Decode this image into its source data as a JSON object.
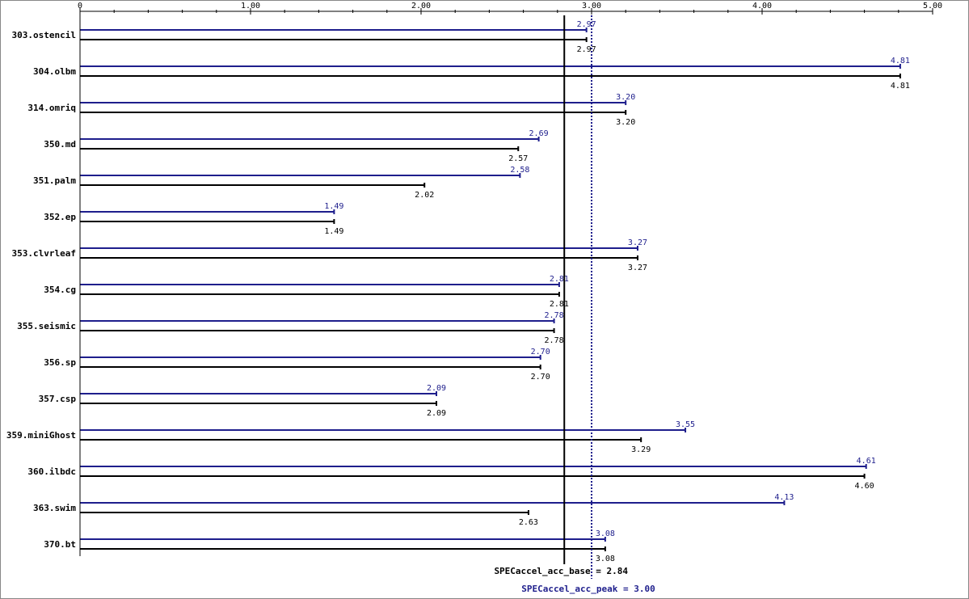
{
  "colors": {
    "base": "#000000",
    "peak": "#1e1e8c",
    "axis": "#000000"
  },
  "chart_data": {
    "type": "bar",
    "orientation": "horizontal",
    "xlim": [
      0,
      5
    ],
    "x_ticks": [
      "0",
      "1.00",
      "2.00",
      "3.00",
      "4.00",
      "5.00"
    ],
    "x_tick_values": [
      0,
      1,
      2,
      3,
      4,
      5
    ],
    "grid": false,
    "categories": [
      "303.ostencil",
      "304.olbm",
      "314.omriq",
      "350.md",
      "351.palm",
      "352.ep",
      "353.clvrleaf",
      "354.cg",
      "355.seismic",
      "356.sp",
      "357.csp",
      "359.miniGhost",
      "360.ilbdc",
      "363.swim",
      "370.bt"
    ],
    "series": [
      {
        "key": "peak",
        "values": [
          2.97,
          4.81,
          3.2,
          2.69,
          2.58,
          1.49,
          3.27,
          2.81,
          2.78,
          2.7,
          2.09,
          3.55,
          4.61,
          4.13,
          3.08
        ],
        "labels": [
          "2.97",
          "4.81",
          "3.20",
          "2.69",
          "2.58",
          "1.49",
          "3.27",
          "2.81",
          "2.78",
          "2.70",
          "2.09",
          "3.55",
          "4.61",
          "4.13",
          "3.08"
        ]
      },
      {
        "key": "base",
        "values": [
          2.97,
          4.81,
          3.2,
          2.57,
          2.02,
          1.49,
          3.27,
          2.81,
          2.78,
          2.7,
          2.09,
          3.29,
          4.6,
          2.63,
          3.08
        ],
        "labels": [
          "2.97",
          "4.81",
          "3.20",
          "2.57",
          "2.02",
          "1.49",
          "3.27",
          "2.81",
          "2.78",
          "2.70",
          "2.09",
          "3.29",
          "4.60",
          "2.63",
          "3.08"
        ]
      }
    ],
    "reference_lines": [
      {
        "key": "base",
        "value": 2.84,
        "label": "SPECaccel_acc_base = 2.84",
        "style": "solid"
      },
      {
        "key": "peak",
        "value": 3.0,
        "label": "SPECaccel_acc_peak = 3.00",
        "style": "dotted"
      }
    ]
  }
}
